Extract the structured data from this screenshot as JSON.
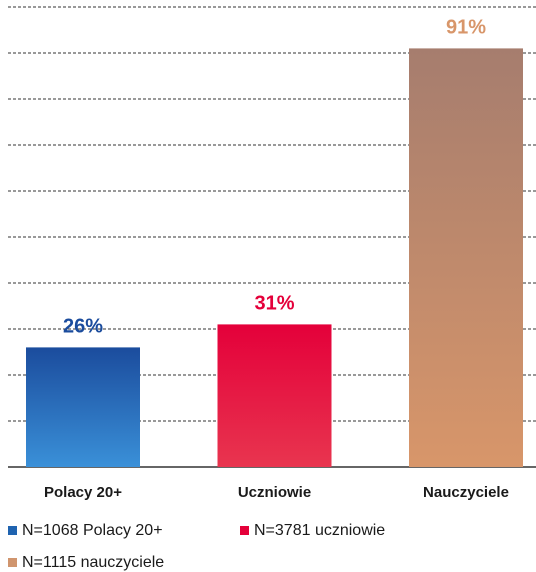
{
  "chart_data": {
    "type": "bar",
    "categories": [
      "Polacy 20+",
      "Uczniowie",
      "Nauczyciele"
    ],
    "values": [
      26,
      31,
      91
    ],
    "value_labels": [
      "26%",
      "31%",
      "91%"
    ],
    "colors": [
      "#1b4c9d",
      "#e4003a",
      "#a67d6e"
    ],
    "gradient_end_colors": [
      "#3a90d8",
      "#e8354f",
      "#d8966a"
    ],
    "ylim": [
      0,
      100
    ],
    "yticks": [
      0,
      10,
      20,
      30,
      40,
      50,
      60,
      70,
      80,
      90,
      100
    ],
    "grid": true,
    "legend": [
      {
        "label": "N=1068 Polacy 20+",
        "color": "#1f63b0"
      },
      {
        "label": "N=3781 uczniowie",
        "color": "#e4003a"
      },
      {
        "label": "N=1115 nauczyciele",
        "color": "#d0956e"
      }
    ]
  }
}
